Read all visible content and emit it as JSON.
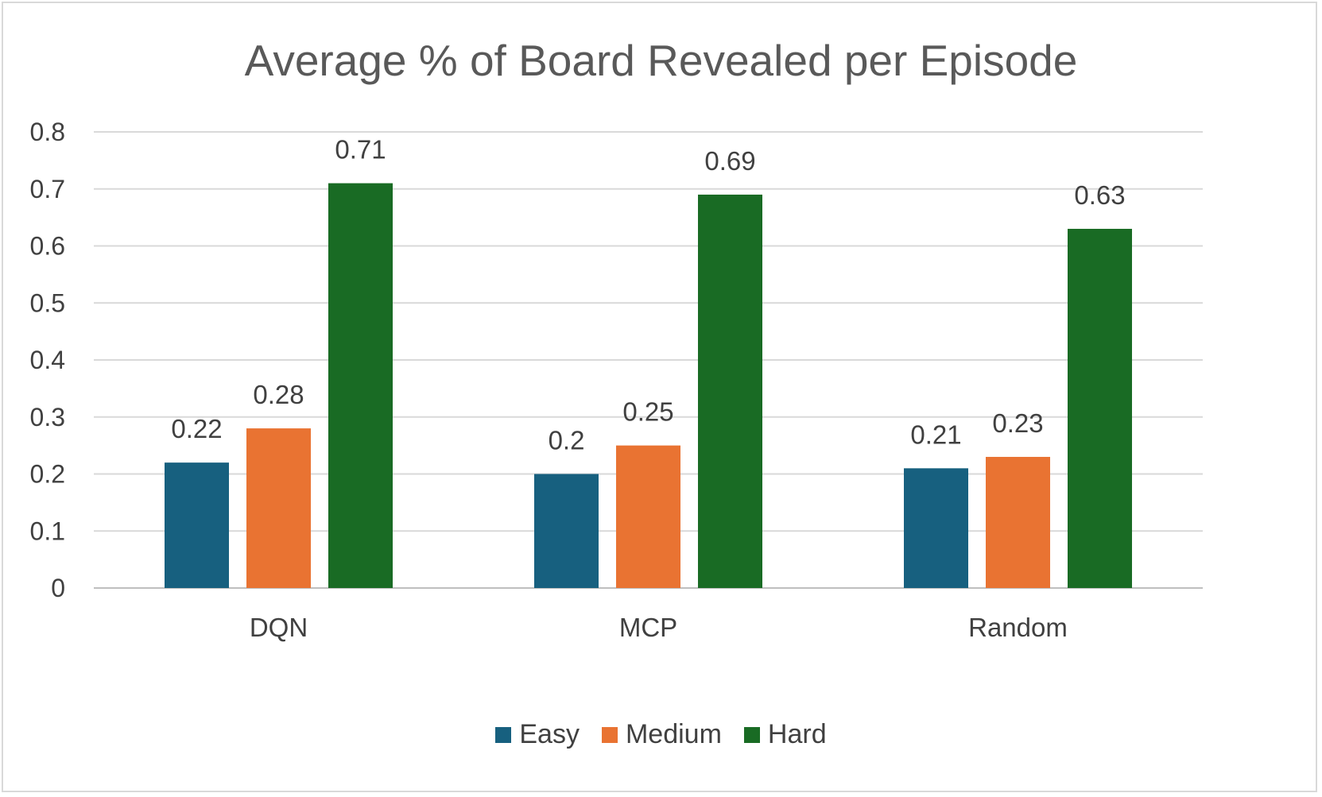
{
  "chart_data": {
    "type": "bar",
    "title": "Average % of Board Revealed per Episode",
    "xlabel": "",
    "ylabel": "",
    "categories": [
      "DQN",
      "MCP",
      "Random"
    ],
    "series": [
      {
        "name": "Easy",
        "color": "#17607f",
        "values": [
          0.22,
          0.2,
          0.21
        ]
      },
      {
        "name": "Medium",
        "color": "#e97332",
        "values": [
          0.28,
          0.25,
          0.23
        ]
      },
      {
        "name": "Hard",
        "color": "#196b24",
        "values": [
          0.71,
          0.69,
          0.63
        ]
      }
    ],
    "ylim": [
      0,
      0.8
    ],
    "yticks": [
      "0",
      "0.1",
      "0.2",
      "0.3",
      "0.4",
      "0.5",
      "0.6",
      "0.7",
      "0.8"
    ],
    "grid": true,
    "legend_position": "bottom",
    "data_labels": true
  }
}
